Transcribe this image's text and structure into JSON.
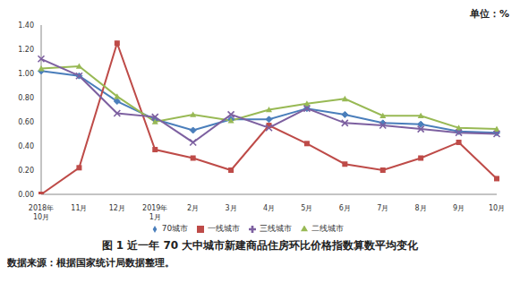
{
  "chart_data": {
    "type": "line",
    "title": "图 1 近一年 70 大中城市新建商品住房环比价格指数算数平均变化",
    "y_label": "单位：%",
    "annotations": [
      "数据来源：根据国家统计局数据整理。"
    ],
    "categories": [
      "2018年\n10月",
      "11月",
      "12月",
      "2019年\n1月",
      "2月",
      "3月",
      "4月",
      "5月",
      "6月",
      "7月",
      "8月",
      "9月",
      "10月"
    ],
    "series": [
      {
        "name": "70城市",
        "color": "#4a7ebb",
        "marker": "diamond",
        "values": [
          1.02,
          0.98,
          0.77,
          0.62,
          0.53,
          0.62,
          0.62,
          0.71,
          0.66,
          0.59,
          0.58,
          0.52,
          0.51
        ]
      },
      {
        "name": "一线城市",
        "color": "#be4b48",
        "marker": "square",
        "values": [
          0.0,
          0.22,
          1.25,
          0.37,
          0.3,
          0.2,
          0.57,
          0.42,
          0.25,
          0.2,
          0.3,
          0.43,
          0.13
        ]
      },
      {
        "name": "二线城市",
        "color": "#98b954",
        "marker": "triangle",
        "values": [
          1.04,
          1.06,
          0.81,
          0.6,
          0.66,
          0.61,
          0.7,
          0.75,
          0.79,
          0.65,
          0.65,
          0.55,
          0.54
        ]
      },
      {
        "name": "三线城市",
        "color": "#7d60a0",
        "marker": "x",
        "values": [
          1.12,
          0.98,
          0.67,
          0.64,
          0.43,
          0.66,
          0.55,
          0.71,
          0.59,
          0.57,
          0.54,
          0.51,
          0.5
        ]
      }
    ],
    "ylim": [
      0,
      1.4
    ],
    "yticks": [
      {
        "value": 0,
        "label": "0.00"
      },
      {
        "value": 0.2,
        "label": "0.20"
      },
      {
        "value": 0.4,
        "label": "0.40"
      },
      {
        "value": 0.6,
        "label": "0.60"
      },
      {
        "value": 0.8,
        "label": "0.80"
      },
      {
        "value": 1.0,
        "label": "1.00"
      },
      {
        "value": 1.2,
        "label": "1.20"
      },
      {
        "value": 1.4,
        "label": "1.40"
      }
    ],
    "grid": false,
    "legend": "bottom"
  }
}
